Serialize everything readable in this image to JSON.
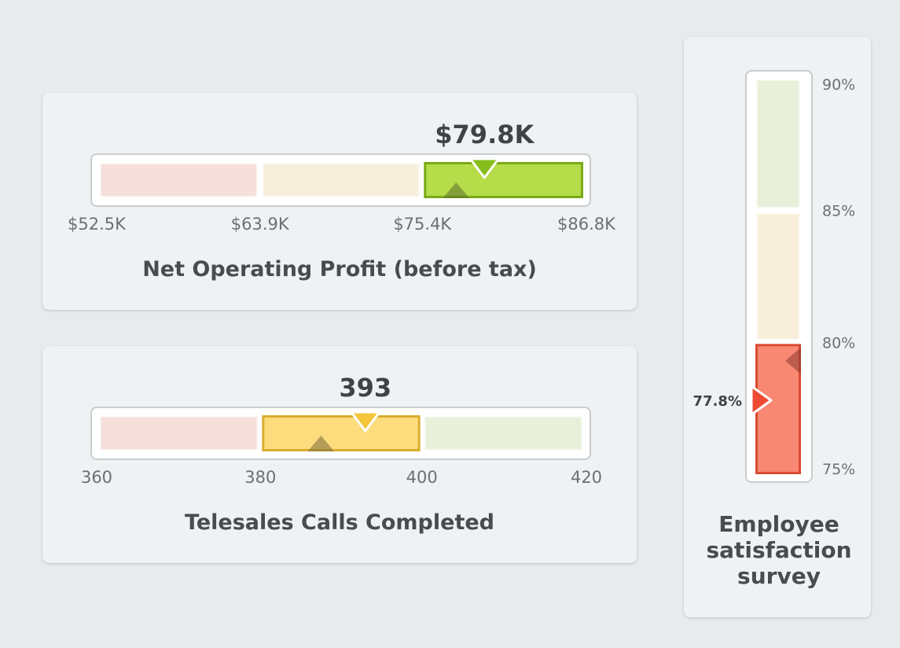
{
  "chart_data": [
    {
      "type": "bullet",
      "orientation": "horizontal",
      "title": "Net Operating Profit (before tax)",
      "value": 79.8,
      "value_label": "$79.8K",
      "target": 77.8,
      "bands": [
        52.5,
        63.9,
        75.4,
        86.8
      ],
      "band_status": [
        "bad",
        "neutral",
        "good"
      ],
      "active_band": 2,
      "tick_labels": [
        "$52.5K",
        "$63.9K",
        "$75.4K",
        "$86.8K"
      ],
      "unit": "K USD",
      "colors": {
        "band_fill": [
          "#f7dfdc",
          "#f7efdc",
          "#e8f0da"
        ],
        "active_fill": "#b5dc49",
        "active_border": "#7aaa17",
        "pointer": "#86bd1c",
        "target": "#5b6e2a"
      }
    },
    {
      "type": "bullet",
      "orientation": "horizontal",
      "title": "Telesales Calls Completed",
      "value": 393,
      "value_label": "393",
      "target": 387.5,
      "bands": [
        360,
        380,
        400,
        420
      ],
      "band_status": [
        "bad",
        "neutral",
        "good"
      ],
      "active_band": 1,
      "tick_labels": [
        "360",
        "380",
        "400",
        "420"
      ],
      "colors": {
        "band_fill": [
          "#f7dfdc",
          "#f7efdc",
          "#e8f0da"
        ],
        "active_fill": "#fcdc7c",
        "active_border": "#d9ad2e",
        "pointer": "#f5c53b",
        "target": "#7a6a3a"
      }
    },
    {
      "type": "bullet",
      "orientation": "vertical",
      "title_lines": [
        "Employee",
        "satisfaction",
        "survey"
      ],
      "value": 77.8,
      "value_label": "77.8%",
      "target": 79.3,
      "bands": [
        75,
        80,
        85,
        90
      ],
      "band_status": [
        "bad",
        "neutral",
        "good"
      ],
      "active_band": 0,
      "tick_labels": [
        "75%",
        "80%",
        "85%",
        "90%"
      ],
      "colors": {
        "band_fill": [
          "#f7dfdc",
          "#f7efdc",
          "#e8f0da"
        ],
        "active_fill": "#f98873",
        "active_border": "#d94a33",
        "pointer": "#ee4a33",
        "target": "#8a3a2e"
      }
    }
  ]
}
